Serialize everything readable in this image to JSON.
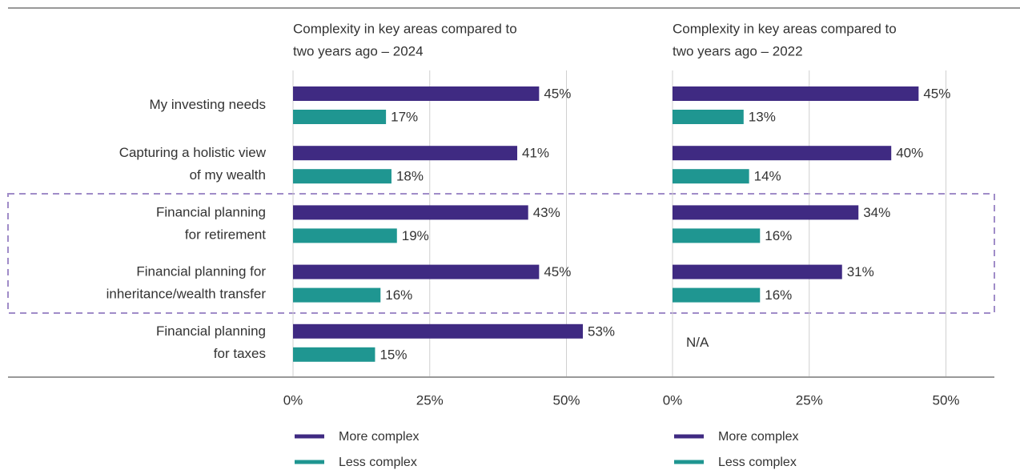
{
  "chart_data": [
    {
      "type": "bar",
      "orientation": "horizontal",
      "title": [
        "Complexity in key areas compared to",
        "two years ago – 2024"
      ],
      "categories": [
        [
          "My investing needs"
        ],
        [
          "Capturing a holistic view",
          "of my wealth"
        ],
        [
          "Financial planning",
          "for retirement"
        ],
        [
          "Financial planning for",
          "inheritance/wealth transfer"
        ],
        [
          "Financial planning",
          "for taxes"
        ]
      ],
      "series": [
        {
          "name": "More complex",
          "color": "#3f2a82",
          "values": [
            45,
            41,
            43,
            45,
            53
          ],
          "value_labels": [
            "45%",
            "41%",
            "43%",
            "45%",
            "53%"
          ]
        },
        {
          "name": "Less complex",
          "color": "#1f9691",
          "values": [
            17,
            18,
            19,
            16,
            15
          ],
          "value_labels": [
            "17%",
            "18%",
            "19%",
            "16%",
            "15%"
          ]
        }
      ],
      "xlim": [
        0,
        65
      ],
      "xticks": [
        {
          "value": 0,
          "label": "0%"
        },
        {
          "value": 25,
          "label": "25%"
        },
        {
          "value": 50,
          "label": "50%"
        }
      ],
      "grid": true
    },
    {
      "type": "bar",
      "orientation": "horizontal",
      "title": [
        "Complexity in key areas compared to",
        "two years ago – 2022"
      ],
      "series": [
        {
          "name": "More complex",
          "color": "#3f2a82",
          "values": [
            45,
            40,
            34,
            31,
            null
          ],
          "value_labels": [
            "45%",
            "40%",
            "34%",
            "31%",
            null
          ]
        },
        {
          "name": "Less complex",
          "color": "#1f9691",
          "values": [
            13,
            14,
            16,
            16,
            null
          ],
          "value_labels": [
            "13%",
            "14%",
            "16%",
            "16%",
            null
          ]
        }
      ],
      "annotation": "N/A",
      "xlim": [
        0,
        60
      ],
      "xticks": [
        {
          "value": 0,
          "label": "0%"
        },
        {
          "value": 25,
          "label": "25%"
        },
        {
          "value": 50,
          "label": "50%"
        }
      ],
      "grid": true
    }
  ]
}
